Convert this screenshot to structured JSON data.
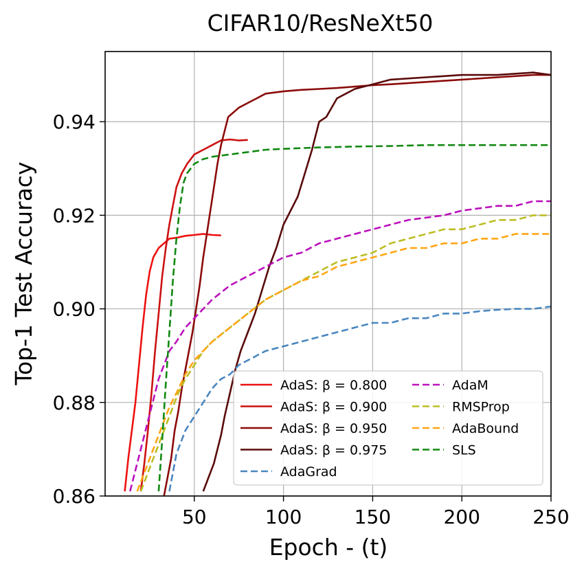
{
  "chart_data": {
    "type": "line",
    "title": "CIFAR10/ResNeXt50",
    "xlabel": "Epoch - (t)",
    "ylabel": "Top-1 Test Accuracy",
    "xlim": [
      0,
      250
    ],
    "ylim": [
      0.86,
      0.955
    ],
    "xticks": [
      50,
      100,
      150,
      200,
      250
    ],
    "xtick_labels": [
      "50",
      "100",
      "150",
      "200",
      "250"
    ],
    "yticks": [
      0.86,
      0.88,
      0.9,
      0.92,
      0.94
    ],
    "ytick_labels": [
      "0.86",
      "0.88",
      "0.90",
      "0.92",
      "0.94"
    ],
    "grid": true,
    "legend_position": "lower-right",
    "legend_columns": 2,
    "series": [
      {
        "name": "AdaS: β = 0.800",
        "color": "#ee1111",
        "dash": "solid",
        "x": [
          11,
          13,
          15,
          17,
          19,
          21,
          23,
          25,
          27,
          30,
          33,
          36,
          40,
          45,
          50,
          55,
          60,
          65
        ],
        "y": [
          0.861,
          0.868,
          0.874,
          0.88,
          0.888,
          0.896,
          0.903,
          0.908,
          0.911,
          0.913,
          0.914,
          0.915,
          0.9152,
          0.9156,
          0.9158,
          0.916,
          0.9158,
          0.9157
        ]
      },
      {
        "name": "AdaS: β = 0.900",
        "color": "#cc1111",
        "dash": "solid",
        "x": [
          20,
          22,
          24,
          26,
          28,
          30,
          32,
          34,
          36,
          38,
          40,
          43,
          46,
          50,
          55,
          60,
          65,
          70,
          75,
          80
        ],
        "y": [
          0.861,
          0.867,
          0.874,
          0.882,
          0.891,
          0.899,
          0.907,
          0.913,
          0.918,
          0.922,
          0.926,
          0.929,
          0.931,
          0.933,
          0.934,
          0.935,
          0.936,
          0.9362,
          0.936,
          0.9361
        ]
      },
      {
        "name": "AdaS: β = 0.950",
        "color": "#8b0a0a",
        "dash": "solid",
        "x": [
          33,
          35,
          37,
          39,
          41,
          43,
          45,
          47,
          49,
          51,
          53,
          55,
          57,
          59,
          61,
          63,
          65,
          67,
          69,
          72,
          75,
          80,
          85,
          90,
          100,
          110,
          120,
          130,
          140,
          150,
          160,
          180,
          200,
          220,
          240,
          250
        ],
        "y": [
          0.86,
          0.864,
          0.868,
          0.874,
          0.878,
          0.883,
          0.887,
          0.891,
          0.895,
          0.9,
          0.905,
          0.911,
          0.916,
          0.921,
          0.926,
          0.931,
          0.935,
          0.938,
          0.941,
          0.942,
          0.943,
          0.944,
          0.945,
          0.946,
          0.9465,
          0.9468,
          0.947,
          0.9472,
          0.9475,
          0.9478,
          0.948,
          0.9485,
          0.949,
          0.9495,
          0.95,
          0.95
        ]
      },
      {
        "name": "AdaS: β = 0.975",
        "color": "#5a0a0a",
        "dash": "solid",
        "x": [
          55,
          57,
          59,
          61,
          63,
          65,
          67,
          70,
          73,
          76,
          80,
          84,
          88,
          92,
          96,
          100,
          104,
          108,
          112,
          116,
          120,
          124,
          130,
          140,
          150,
          160,
          180,
          200,
          220,
          240,
          250
        ],
        "y": [
          0.861,
          0.863,
          0.865,
          0.867,
          0.87,
          0.873,
          0.877,
          0.882,
          0.887,
          0.891,
          0.895,
          0.899,
          0.904,
          0.909,
          0.913,
          0.918,
          0.921,
          0.924,
          0.929,
          0.934,
          0.94,
          0.941,
          0.945,
          0.947,
          0.948,
          0.949,
          0.9495,
          0.95,
          0.95,
          0.9505,
          0.95
        ]
      },
      {
        "name": "AdaGrad",
        "color": "#4a86bf",
        "dash": "dashed",
        "x": [
          36,
          40,
          45,
          50,
          55,
          60,
          65,
          70,
          75,
          80,
          90,
          100,
          110,
          120,
          130,
          140,
          150,
          160,
          170,
          180,
          190,
          200,
          210,
          220,
          230,
          240,
          250
        ],
        "y": [
          0.861,
          0.869,
          0.874,
          0.877,
          0.88,
          0.883,
          0.885,
          0.886,
          0.888,
          0.889,
          0.891,
          0.892,
          0.893,
          0.894,
          0.895,
          0.896,
          0.897,
          0.897,
          0.898,
          0.898,
          0.899,
          0.899,
          0.8995,
          0.8998,
          0.9,
          0.9,
          0.9005
        ]
      },
      {
        "name": "AdaM",
        "color": "#bb11bb",
        "dash": "dashed",
        "x": [
          14,
          16,
          18,
          20,
          22,
          24,
          26,
          28,
          30,
          33,
          36,
          40,
          45,
          50,
          55,
          60,
          70,
          80,
          90,
          100,
          110,
          120,
          130,
          140,
          150,
          160,
          170,
          180,
          190,
          200,
          210,
          220,
          230,
          240,
          250
        ],
        "y": [
          0.861,
          0.864,
          0.867,
          0.87,
          0.873,
          0.876,
          0.879,
          0.882,
          0.885,
          0.888,
          0.891,
          0.893,
          0.896,
          0.898,
          0.9,
          0.902,
          0.905,
          0.907,
          0.909,
          0.911,
          0.912,
          0.914,
          0.915,
          0.916,
          0.917,
          0.918,
          0.919,
          0.9195,
          0.92,
          0.921,
          0.9215,
          0.922,
          0.922,
          0.923,
          0.923
        ]
      },
      {
        "name": "RMSProp",
        "color": "#bcbd22",
        "dash": "dashed",
        "x": [
          20,
          23,
          26,
          29,
          32,
          35,
          38,
          41,
          45,
          50,
          55,
          60,
          70,
          80,
          90,
          100,
          110,
          120,
          130,
          140,
          150,
          160,
          170,
          180,
          190,
          200,
          210,
          220,
          230,
          240,
          250
        ],
        "y": [
          0.861,
          0.864,
          0.867,
          0.87,
          0.873,
          0.876,
          0.879,
          0.882,
          0.885,
          0.888,
          0.891,
          0.893,
          0.896,
          0.899,
          0.902,
          0.904,
          0.906,
          0.908,
          0.91,
          0.911,
          0.912,
          0.914,
          0.915,
          0.916,
          0.917,
          0.917,
          0.918,
          0.919,
          0.919,
          0.92,
          0.92
        ]
      },
      {
        "name": "AdaBound",
        "color": "#ffa514",
        "dash": "dashed",
        "x": [
          18,
          21,
          24,
          27,
          30,
          33,
          36,
          40,
          45,
          50,
          55,
          60,
          70,
          80,
          90,
          100,
          110,
          120,
          130,
          140,
          150,
          160,
          170,
          180,
          190,
          200,
          210,
          220,
          230,
          240,
          250
        ],
        "y": [
          0.861,
          0.864,
          0.867,
          0.87,
          0.873,
          0.876,
          0.879,
          0.882,
          0.886,
          0.889,
          0.891,
          0.893,
          0.896,
          0.899,
          0.902,
          0.904,
          0.906,
          0.907,
          0.909,
          0.91,
          0.911,
          0.912,
          0.913,
          0.913,
          0.914,
          0.914,
          0.915,
          0.915,
          0.916,
          0.916,
          0.916
        ]
      },
      {
        "name": "SLS",
        "color": "#118811",
        "dash": "dashed",
        "x": [
          30,
          32,
          34,
          36,
          38,
          40,
          42,
          44,
          46,
          48,
          50,
          55,
          60,
          70,
          80,
          90,
          100,
          120,
          140,
          160,
          180,
          200,
          220,
          240,
          250
        ],
        "y": [
          0.861,
          0.872,
          0.884,
          0.895,
          0.906,
          0.915,
          0.922,
          0.927,
          0.929,
          0.93,
          0.931,
          0.932,
          0.9325,
          0.933,
          0.9335,
          0.934,
          0.9342,
          0.9345,
          0.9347,
          0.9348,
          0.935,
          0.935,
          0.935,
          0.935,
          0.935
        ]
      }
    ]
  }
}
